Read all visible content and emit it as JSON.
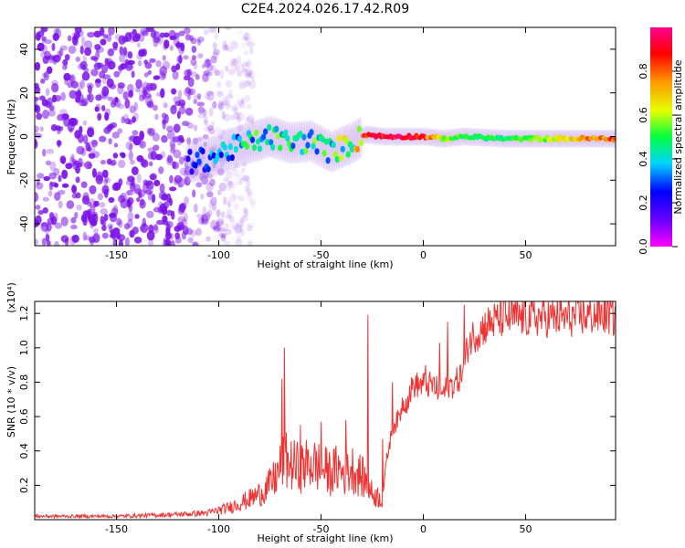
{
  "title": "C2E4.2024.026.17.42.R09",
  "colors": {
    "snr_line": "#ee3333",
    "colorbar": [
      "#ff00ff",
      "#6a00ff",
      "#0000ff",
      "#00d5ff",
      "#00ff40",
      "#e5ff00",
      "#ff9a00",
      "#ff0000",
      "#ff0090"
    ],
    "spectrogram_noise": "#7a10e8",
    "ridge_core": "#ff2020"
  },
  "chart_data": [
    {
      "type": "heatmap",
      "xlabel": "Height of straight line (km)",
      "ylabel": "Frequency (Hz)",
      "xlim": [
        -190,
        94
      ],
      "ylim": [
        -50,
        50
      ],
      "xticks": [
        -150,
        -100,
        -50,
        0,
        50
      ],
      "yticks": [
        -40,
        -20,
        0,
        20,
        40
      ],
      "colorbar": {
        "label": "Normalized spectral amplitude",
        "range": [
          0,
          1
        ],
        "ticks": [
          "0.0",
          "0.2",
          "0.4",
          "0.6",
          "0.8"
        ]
      },
      "noise_region_km": [
        -190,
        -95
      ],
      "signal_ridge": {
        "x": [
          -115,
          -105,
          -95,
          -85,
          -75,
          -65,
          -55,
          -45,
          -35,
          -28,
          -20,
          -10,
          0,
          10,
          20,
          40,
          60,
          80,
          94
        ],
        "frequency": [
          -12,
          -10,
          -6,
          -3,
          0,
          -3,
          -2,
          -7,
          -3,
          1,
          0,
          0,
          0,
          -1,
          0,
          -1,
          -1,
          -1,
          -1
        ],
        "peak_amplitude": [
          0.25,
          0.35,
          0.45,
          0.5,
          0.55,
          0.55,
          0.55,
          0.6,
          0.65,
          0.9,
          0.95,
          0.95,
          0.9,
          0.6,
          0.55,
          0.5,
          0.6,
          0.8,
          0.85
        ]
      }
    },
    {
      "type": "line",
      "xlabel": "Height of straight line (km)",
      "ylabel": "SNR (10 * v/v)",
      "multiplier": "(x10⁴)",
      "xlim": [
        -190,
        94
      ],
      "ylim": [
        0,
        1.27
      ],
      "xticks": [
        -150,
        -100,
        -50,
        0,
        50
      ],
      "yticks": [
        "0.2",
        "0.4",
        "0.6",
        "0.8",
        "1.0",
        "1.2"
      ],
      "series": [
        {
          "x": [
            -190,
            -150,
            -120,
            -105,
            -95,
            -85,
            -80,
            -75,
            -72,
            -70,
            -68,
            -65,
            -60,
            -55,
            -50,
            -45,
            -42,
            -40,
            -38,
            -35,
            -32,
            -30,
            -27,
            -25,
            -20,
            -18,
            -15,
            -12,
            -10,
            -8,
            -5,
            0,
            3,
            5,
            8,
            10,
            12,
            15,
            18,
            20,
            22,
            25,
            28,
            30,
            35,
            40,
            50,
            60,
            70,
            80,
            90,
            94
          ],
          "values": [
            0.02,
            0.02,
            0.03,
            0.04,
            0.07,
            0.12,
            0.15,
            0.2,
            0.25,
            0.3,
            0.35,
            0.32,
            0.3,
            0.33,
            0.3,
            0.27,
            0.3,
            0.28,
            0.27,
            0.3,
            0.27,
            0.25,
            0.2,
            0.15,
            0.12,
            0.35,
            0.55,
            0.6,
            0.7,
            0.7,
            0.8,
            0.8,
            0.8,
            0.8,
            0.75,
            0.75,
            0.8,
            0.8,
            0.85,
            0.9,
            1.05,
            1.1,
            1.12,
            1.15,
            1.18,
            1.2,
            1.2,
            1.2,
            1.2,
            1.21,
            1.22,
            1.2
          ]
        }
      ],
      "spikes": [
        {
          "x": -69,
          "value": 0.82
        },
        {
          "x": -68,
          "value": 1.0
        },
        {
          "x": -60,
          "value": 0.55
        },
        {
          "x": -50,
          "value": 0.57
        },
        {
          "x": -38,
          "value": 0.58
        },
        {
          "x": -27,
          "value": 1.19
        },
        {
          "x": -20,
          "value": 0.47
        },
        {
          "x": -15,
          "value": 0.8
        },
        {
          "x": 1,
          "value": 0.9
        },
        {
          "x": 8,
          "value": 1.03
        },
        {
          "x": 12,
          "value": 1.15
        },
        {
          "x": 20,
          "value": 1.25
        }
      ]
    }
  ]
}
